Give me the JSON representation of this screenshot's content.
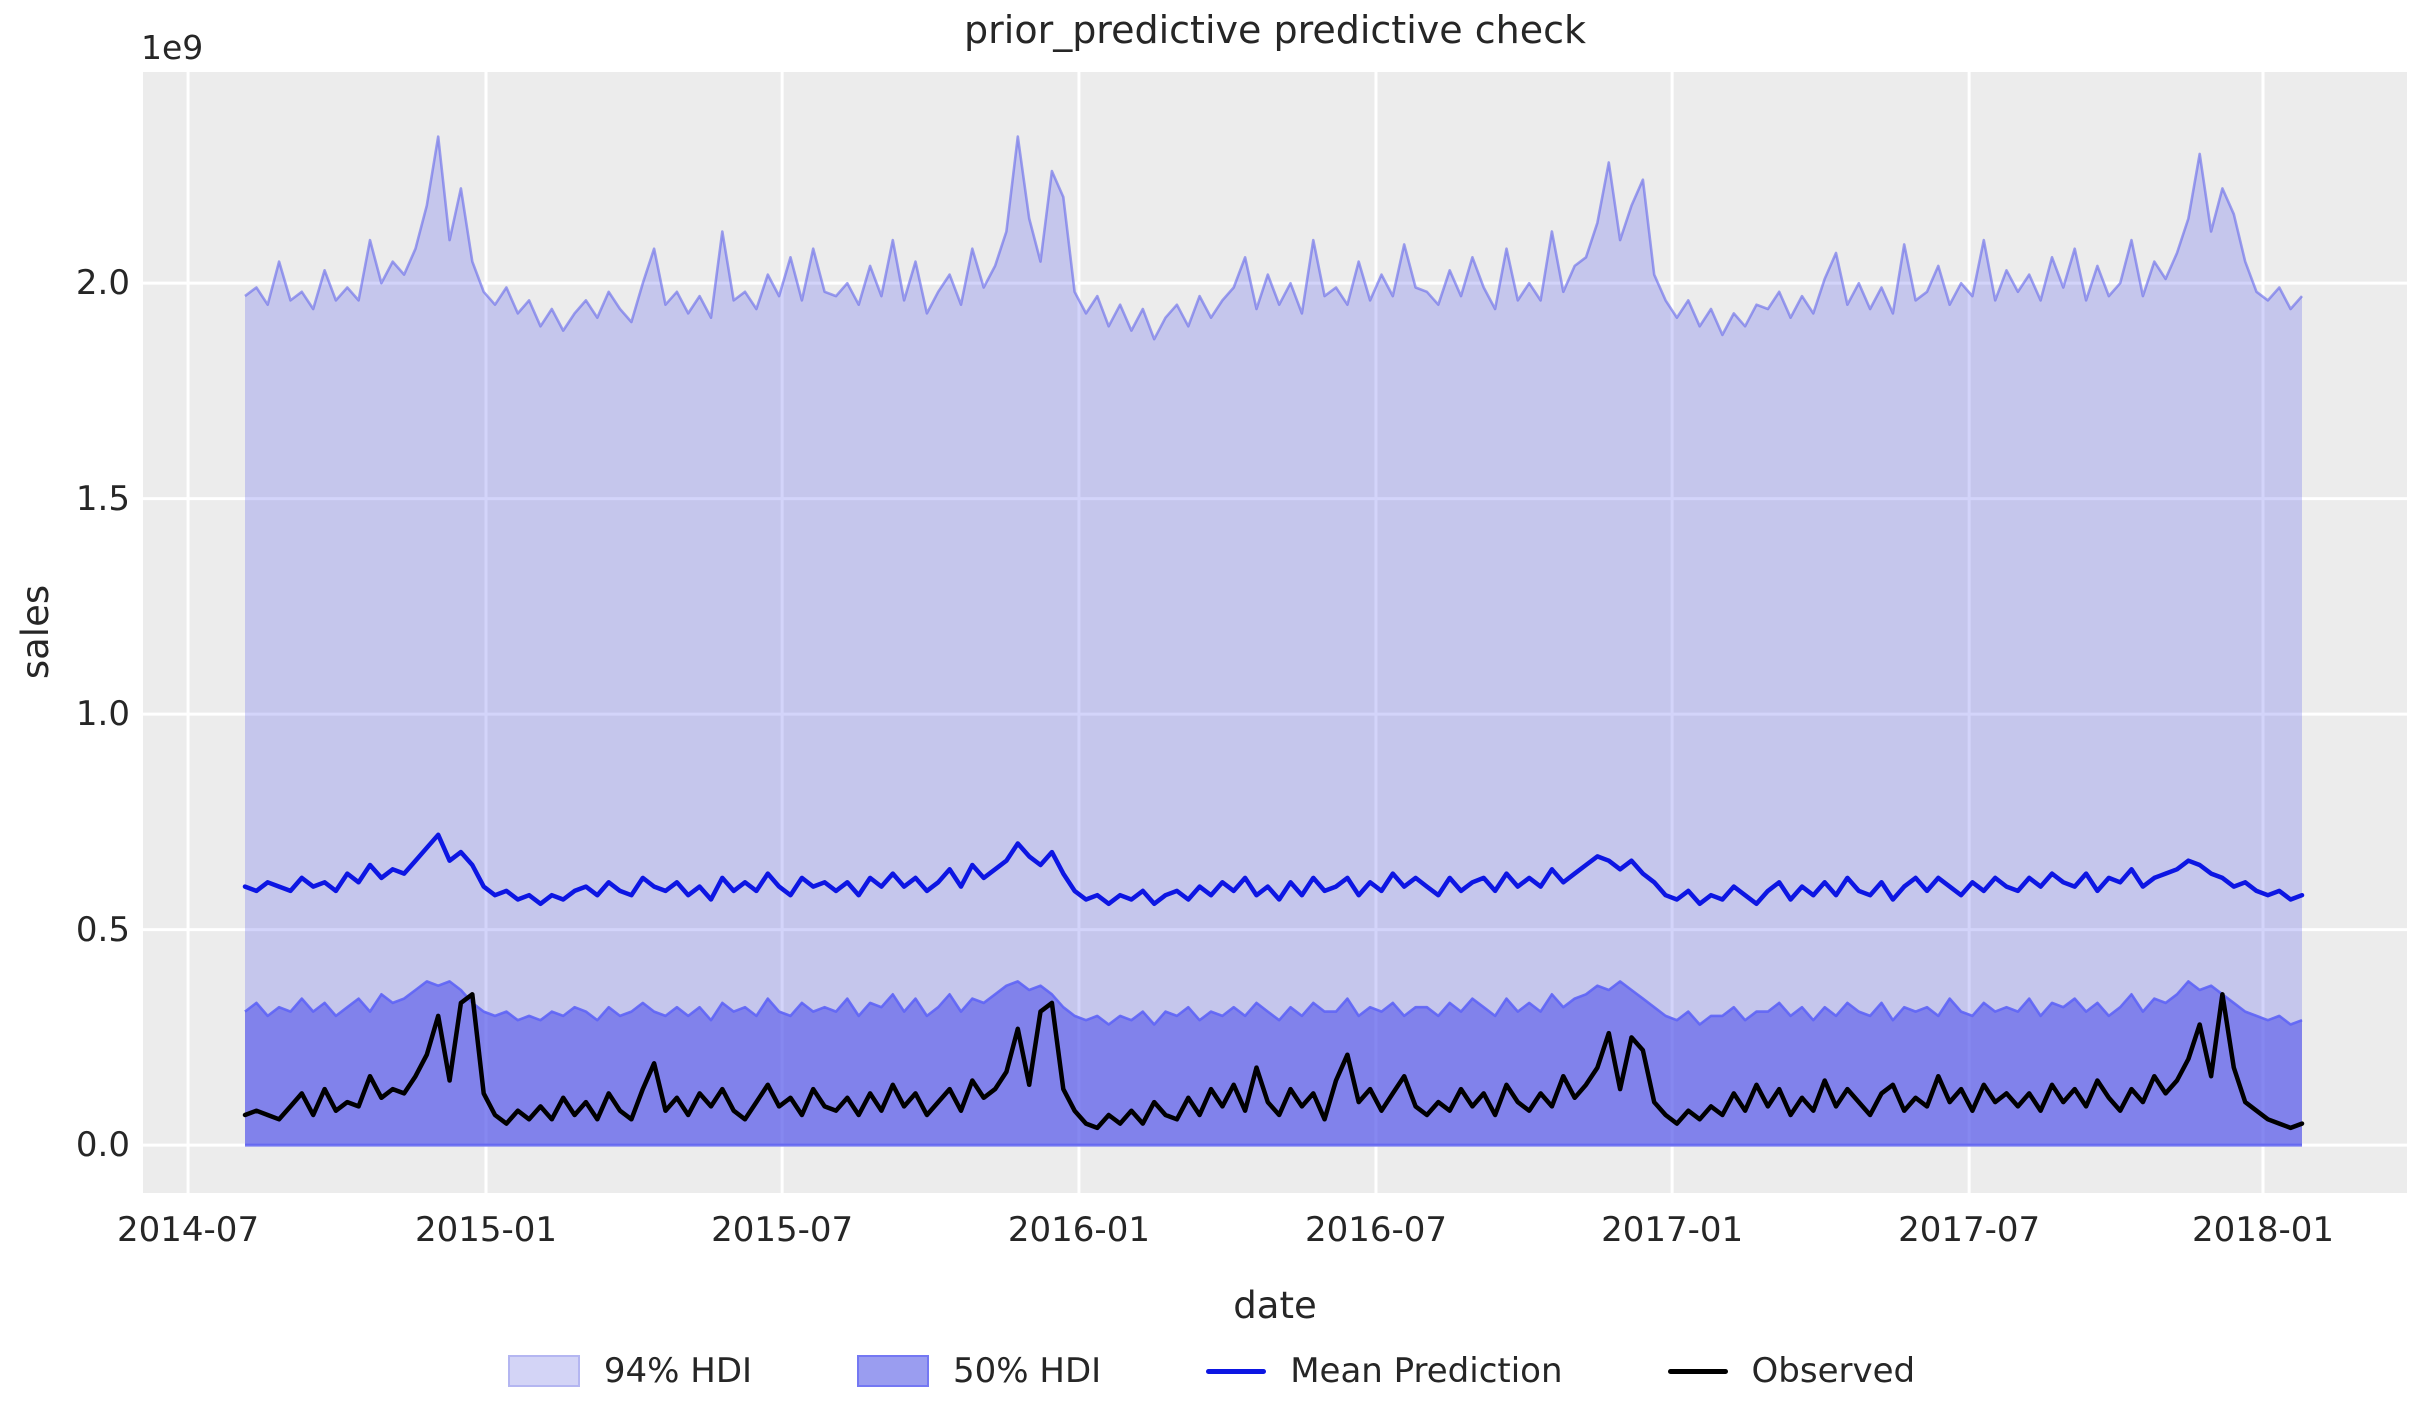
{
  "chart_data": {
    "type": "line",
    "title": "prior_predictive predictive check",
    "xlabel": "date",
    "ylabel": "sales",
    "y_scale_offset_label": "1e9",
    "value_unit": "1e9",
    "x_unit": "weekly observations from 2014-08 to 2018-01",
    "x_ticks": [
      "2014-07",
      "2015-01",
      "2015-07",
      "2016-01",
      "2016-07",
      "2017-01",
      "2017-07",
      "2018-01"
    ],
    "y_ticks": [
      {
        "value": 0.0,
        "label": "0.0"
      },
      {
        "value": 0.5,
        "label": "0.5"
      },
      {
        "value": 1.0,
        "label": "1.0"
      },
      {
        "value": 1.5,
        "label": "1.5"
      },
      {
        "value": 2.0,
        "label": "2.0"
      }
    ],
    "ylim": [
      -0.111,
      2.49
    ],
    "grid": true,
    "background_color": "#ececec",
    "gridline_color": "#ffffff",
    "legend_position": "bottom-center",
    "legend": [
      {
        "label": "94% HDI",
        "kind": "patch",
        "fill": "#d3d4f6",
        "border": "#b4b6f1"
      },
      {
        "label": "50% HDI",
        "kind": "patch",
        "fill": "#9a9df0",
        "border": "#7478f3"
      },
      {
        "label": "Mean Prediction",
        "kind": "line",
        "color": "#0d16e3"
      },
      {
        "label": "Observed",
        "kind": "line",
        "color": "#000000"
      }
    ],
    "series": [
      {
        "name": "94% HDI",
        "type": "band",
        "fill": "rgba(92,95,235,0.27)",
        "edge": "rgba(100,103,235,0.6)",
        "bottom": 0,
        "top": [
          1.97,
          1.99,
          1.95,
          2.05,
          1.96,
          1.98,
          1.94,
          2.03,
          1.96,
          1.99,
          1.96,
          2.1,
          2.0,
          2.05,
          2.02,
          2.08,
          2.18,
          2.34,
          2.1,
          2.22,
          2.05,
          1.98,
          1.95,
          1.99,
          1.93,
          1.96,
          1.9,
          1.94,
          1.89,
          1.93,
          1.96,
          1.92,
          1.98,
          1.94,
          1.91,
          2.0,
          2.08,
          1.95,
          1.98,
          1.93,
          1.97,
          1.92,
          2.12,
          1.96,
          1.98,
          1.94,
          2.02,
          1.97,
          2.06,
          1.96,
          2.08,
          1.98,
          1.97,
          2.0,
          1.95,
          2.04,
          1.97,
          2.1,
          1.96,
          2.05,
          1.93,
          1.98,
          2.02,
          1.95,
          2.08,
          1.99,
          2.04,
          2.12,
          2.34,
          2.15,
          2.05,
          2.26,
          2.2,
          1.98,
          1.93,
          1.97,
          1.9,
          1.95,
          1.89,
          1.94,
          1.87,
          1.92,
          1.95,
          1.9,
          1.97,
          1.92,
          1.96,
          1.99,
          2.06,
          1.94,
          2.02,
          1.95,
          2.0,
          1.93,
          2.1,
          1.97,
          1.99,
          1.95,
          2.05,
          1.96,
          2.02,
          1.97,
          2.09,
          1.99,
          1.98,
          1.95,
          2.03,
          1.97,
          2.06,
          1.99,
          1.94,
          2.08,
          1.96,
          2.0,
          1.96,
          2.12,
          1.98,
          2.04,
          2.06,
          2.14,
          2.28,
          2.1,
          2.18,
          2.24,
          2.02,
          1.96,
          1.92,
          1.96,
          1.9,
          1.94,
          1.88,
          1.93,
          1.9,
          1.95,
          1.94,
          1.98,
          1.92,
          1.97,
          1.93,
          2.01,
          2.07,
          1.95,
          2.0,
          1.94,
          1.99,
          1.93,
          2.09,
          1.96,
          1.98,
          2.04,
          1.95,
          2.0,
          1.97,
          2.1,
          1.96,
          2.03,
          1.98,
          2.02,
          1.96,
          2.06,
          1.99,
          2.08,
          1.96,
          2.04,
          1.97,
          2.0,
          2.1,
          1.97,
          2.05,
          2.01,
          2.07,
          2.15,
          2.3,
          2.12,
          2.22,
          2.16,
          2.05,
          1.98,
          1.96,
          1.99,
          1.94,
          1.97
        ]
      },
      {
        "name": "50% HDI",
        "type": "band",
        "fill": "rgba(90,93,235,0.64)",
        "edge": "rgba(94,100,246,0.9)",
        "bottom": 0,
        "top": [
          0.31,
          0.33,
          0.3,
          0.32,
          0.31,
          0.34,
          0.31,
          0.33,
          0.3,
          0.32,
          0.34,
          0.31,
          0.35,
          0.33,
          0.34,
          0.36,
          0.38,
          0.37,
          0.38,
          0.36,
          0.33,
          0.31,
          0.3,
          0.31,
          0.29,
          0.3,
          0.29,
          0.31,
          0.3,
          0.32,
          0.31,
          0.29,
          0.32,
          0.3,
          0.31,
          0.33,
          0.31,
          0.3,
          0.32,
          0.3,
          0.32,
          0.29,
          0.33,
          0.31,
          0.32,
          0.3,
          0.34,
          0.31,
          0.3,
          0.33,
          0.31,
          0.32,
          0.31,
          0.34,
          0.3,
          0.33,
          0.32,
          0.35,
          0.31,
          0.34,
          0.3,
          0.32,
          0.35,
          0.31,
          0.34,
          0.33,
          0.35,
          0.37,
          0.38,
          0.36,
          0.37,
          0.35,
          0.32,
          0.3,
          0.29,
          0.3,
          0.28,
          0.3,
          0.29,
          0.31,
          0.28,
          0.31,
          0.3,
          0.32,
          0.29,
          0.31,
          0.3,
          0.32,
          0.3,
          0.33,
          0.31,
          0.29,
          0.32,
          0.3,
          0.33,
          0.31,
          0.31,
          0.34,
          0.3,
          0.32,
          0.31,
          0.33,
          0.3,
          0.32,
          0.32,
          0.3,
          0.33,
          0.31,
          0.34,
          0.32,
          0.3,
          0.34,
          0.31,
          0.33,
          0.31,
          0.35,
          0.32,
          0.34,
          0.35,
          0.37,
          0.36,
          0.38,
          0.36,
          0.34,
          0.32,
          0.3,
          0.29,
          0.31,
          0.28,
          0.3,
          0.3,
          0.32,
          0.29,
          0.31,
          0.31,
          0.33,
          0.3,
          0.32,
          0.29,
          0.32,
          0.3,
          0.33,
          0.31,
          0.3,
          0.33,
          0.29,
          0.32,
          0.31,
          0.32,
          0.3,
          0.34,
          0.31,
          0.3,
          0.33,
          0.31,
          0.32,
          0.31,
          0.34,
          0.3,
          0.33,
          0.32,
          0.34,
          0.31,
          0.33,
          0.3,
          0.32,
          0.35,
          0.31,
          0.34,
          0.33,
          0.35,
          0.38,
          0.36,
          0.37,
          0.35,
          0.33,
          0.31,
          0.3,
          0.29,
          0.3,
          0.28,
          0.29
        ]
      },
      {
        "name": "Mean Prediction",
        "type": "line",
        "color": "#0d16e3",
        "values": [
          0.6,
          0.59,
          0.61,
          0.6,
          0.59,
          0.62,
          0.6,
          0.61,
          0.59,
          0.63,
          0.61,
          0.65,
          0.62,
          0.64,
          0.63,
          0.66,
          0.69,
          0.72,
          0.66,
          0.68,
          0.65,
          0.6,
          0.58,
          0.59,
          0.57,
          0.58,
          0.56,
          0.58,
          0.57,
          0.59,
          0.6,
          0.58,
          0.61,
          0.59,
          0.58,
          0.62,
          0.6,
          0.59,
          0.61,
          0.58,
          0.6,
          0.57,
          0.62,
          0.59,
          0.61,
          0.59,
          0.63,
          0.6,
          0.58,
          0.62,
          0.6,
          0.61,
          0.59,
          0.61,
          0.58,
          0.62,
          0.6,
          0.63,
          0.6,
          0.62,
          0.59,
          0.61,
          0.64,
          0.6,
          0.65,
          0.62,
          0.64,
          0.66,
          0.7,
          0.67,
          0.65,
          0.68,
          0.63,
          0.59,
          0.57,
          0.58,
          0.56,
          0.58,
          0.57,
          0.59,
          0.56,
          0.58,
          0.59,
          0.57,
          0.6,
          0.58,
          0.61,
          0.59,
          0.62,
          0.58,
          0.6,
          0.57,
          0.61,
          0.58,
          0.62,
          0.59,
          0.6,
          0.62,
          0.58,
          0.61,
          0.59,
          0.63,
          0.6,
          0.62,
          0.6,
          0.58,
          0.62,
          0.59,
          0.61,
          0.62,
          0.59,
          0.63,
          0.6,
          0.62,
          0.6,
          0.64,
          0.61,
          0.63,
          0.65,
          0.67,
          0.66,
          0.64,
          0.66,
          0.63,
          0.61,
          0.58,
          0.57,
          0.59,
          0.56,
          0.58,
          0.57,
          0.6,
          0.58,
          0.56,
          0.59,
          0.61,
          0.57,
          0.6,
          0.58,
          0.61,
          0.58,
          0.62,
          0.59,
          0.58,
          0.61,
          0.57,
          0.6,
          0.62,
          0.59,
          0.62,
          0.6,
          0.58,
          0.61,
          0.59,
          0.62,
          0.6,
          0.59,
          0.62,
          0.6,
          0.63,
          0.61,
          0.6,
          0.63,
          0.59,
          0.62,
          0.61,
          0.64,
          0.6,
          0.62,
          0.63,
          0.64,
          0.66,
          0.65,
          0.63,
          0.62,
          0.6,
          0.61,
          0.59,
          0.58,
          0.59,
          0.57,
          0.58
        ]
      },
      {
        "name": "Observed",
        "type": "line",
        "color": "#000000",
        "values": [
          0.07,
          0.08,
          0.07,
          0.06,
          0.09,
          0.12,
          0.07,
          0.13,
          0.08,
          0.1,
          0.09,
          0.16,
          0.11,
          0.13,
          0.12,
          0.16,
          0.21,
          0.3,
          0.15,
          0.33,
          0.35,
          0.12,
          0.07,
          0.05,
          0.08,
          0.06,
          0.09,
          0.06,
          0.11,
          0.07,
          0.1,
          0.06,
          0.12,
          0.08,
          0.06,
          0.13,
          0.19,
          0.08,
          0.11,
          0.07,
          0.12,
          0.09,
          0.13,
          0.08,
          0.06,
          0.1,
          0.14,
          0.09,
          0.11,
          0.07,
          0.13,
          0.09,
          0.08,
          0.11,
          0.07,
          0.12,
          0.08,
          0.14,
          0.09,
          0.12,
          0.07,
          0.1,
          0.13,
          0.08,
          0.15,
          0.11,
          0.13,
          0.17,
          0.27,
          0.14,
          0.31,
          0.33,
          0.13,
          0.08,
          0.05,
          0.04,
          0.07,
          0.05,
          0.08,
          0.05,
          0.1,
          0.07,
          0.06,
          0.11,
          0.07,
          0.13,
          0.09,
          0.14,
          0.08,
          0.18,
          0.1,
          0.07,
          0.13,
          0.09,
          0.12,
          0.06,
          0.15,
          0.21,
          0.1,
          0.13,
          0.08,
          0.12,
          0.16,
          0.09,
          0.07,
          0.1,
          0.08,
          0.13,
          0.09,
          0.12,
          0.07,
          0.14,
          0.1,
          0.08,
          0.12,
          0.09,
          0.16,
          0.11,
          0.14,
          0.18,
          0.26,
          0.13,
          0.25,
          0.22,
          0.1,
          0.07,
          0.05,
          0.08,
          0.06,
          0.09,
          0.07,
          0.12,
          0.08,
          0.14,
          0.09,
          0.13,
          0.07,
          0.11,
          0.08,
          0.15,
          0.09,
          0.13,
          0.1,
          0.07,
          0.12,
          0.14,
          0.08,
          0.11,
          0.09,
          0.16,
          0.1,
          0.13,
          0.08,
          0.14,
          0.1,
          0.12,
          0.09,
          0.12,
          0.08,
          0.14,
          0.1,
          0.13,
          0.09,
          0.15,
          0.11,
          0.08,
          0.13,
          0.1,
          0.16,
          0.12,
          0.15,
          0.2,
          0.28,
          0.16,
          0.35,
          0.18,
          0.1,
          0.08,
          0.06,
          0.05,
          0.04,
          0.05
        ]
      }
    ]
  }
}
